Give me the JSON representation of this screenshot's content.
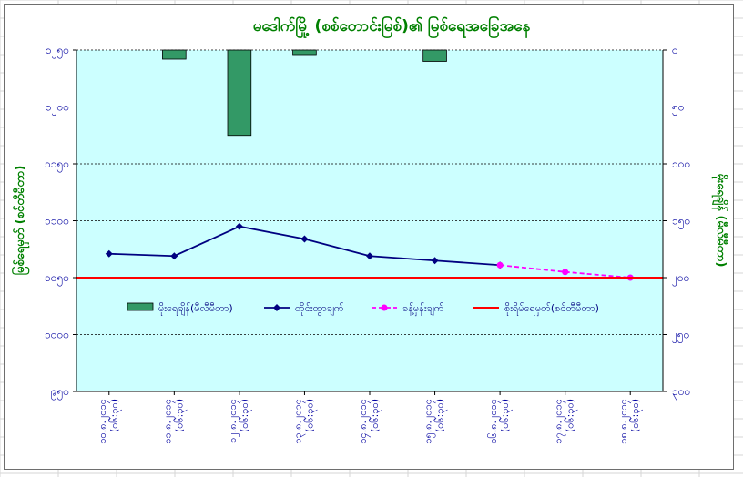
{
  "chart_data": {
    "type": "bar+line",
    "title": "မဒေါက်မြို့ (စစ်တောင်းမြစ်)၏ မြစ်ရေအခြေအနေ",
    "categories": [
      "၁၀.၈.၂၀၁၄ (၀၆:၃၀)",
      "၁၁.၈.၂၀၁၄ (၀၆:၃၀)",
      "၁၂.၈.၂၀၁၄ (၀၆:၃၀)",
      "၁၃.၈.၂၀၁၄ (၀၆:၃၀)",
      "၁၄.၈.၂၀၁၄ (၀၆:၃၀)",
      "၁၅.၈.၂၀၁၄ (၀၆:၃၀)",
      "၁၆.၈.၂၀၁၄ (၀၆:၃၀)",
      "၁၇.၈.၂၀၁၄ (၀၆:၃၀)",
      "၁၈.၈.၂၀၁၄ (၀၆:၃၀)"
    ],
    "left_axis": {
      "label": "မြစ်ရေမှတ် (စင်တီမီတာ)",
      "ylim": [
        950,
        1250
      ],
      "ticks": [
        950,
        1000,
        1050,
        1100,
        1150,
        1200,
        1250
      ],
      "tick_labels": [
        "၉၅၀",
        "၁၀၀၀",
        "၁၀၅၀",
        "၁၁၀၀",
        "၁၁၅၀",
        "၁၂၀၀",
        "၁၂၅၀"
      ],
      "grid": true
    },
    "right_axis": {
      "label": "မိုးရေချိန် (မီလီမီတာ)",
      "ylim": [
        0,
        300
      ],
      "inverted": true,
      "ticks": [
        0,
        50,
        100,
        150,
        200,
        250,
        300
      ],
      "tick_labels": [
        "၀",
        "၅၀",
        "၁၀၀",
        "၁၅၀",
        "၂၀၀",
        "၂၅၀",
        "၃၀၀"
      ]
    },
    "series": [
      {
        "name": "မိုးရေချိန်(မီလီမီတာ)",
        "kind": "bar",
        "axis": "right",
        "color": "#339966",
        "values": [
          0,
          8,
          75,
          4,
          0,
          10,
          null,
          null,
          null
        ]
      },
      {
        "name": "တိုင်းထွာချက်",
        "kind": "line",
        "axis": "left",
        "color": "#000080",
        "values": [
          1071,
          1069,
          1095,
          1084,
          1069,
          1065,
          1061,
          null,
          null
        ]
      },
      {
        "name": "ခန့်မှန်းချက်",
        "kind": "line-dashed",
        "axis": "left",
        "color": "#ff00ff",
        "values": [
          null,
          null,
          null,
          null,
          null,
          null,
          1061,
          1055,
          1050
        ]
      },
      {
        "name": "စိုးရိမ်ရေမှတ်(စင်တီမီတာ)",
        "kind": "hline",
        "axis": "left",
        "color": "#ff0000",
        "value": 1050
      }
    ],
    "legend_position": "inside-middle",
    "plot_background": "#ccffff"
  }
}
